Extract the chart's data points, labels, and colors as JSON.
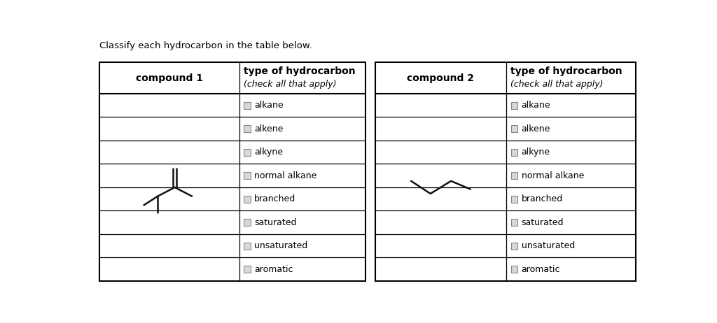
{
  "title_text": "Classify each hydrocarbon in the table below.",
  "header_col1": "compound 1",
  "header_col3": "compound 2",
  "header_type": "type of hydrocarbon",
  "header_sub": "(check all that apply)",
  "options": [
    "alkane",
    "alkene",
    "alkyne",
    "normal alkane",
    "branched",
    "saturated",
    "unsaturated",
    "aromatic"
  ],
  "bg_color": "#ffffff",
  "lc": "#000000",
  "text_color": "#000000",
  "fig_width": 10.24,
  "fig_height": 4.62,
  "title_fontsize": 9.5,
  "header_fontsize": 10,
  "option_fontsize": 9,
  "cb_color": "#d8d8d8",
  "cb_edge": "#888888"
}
